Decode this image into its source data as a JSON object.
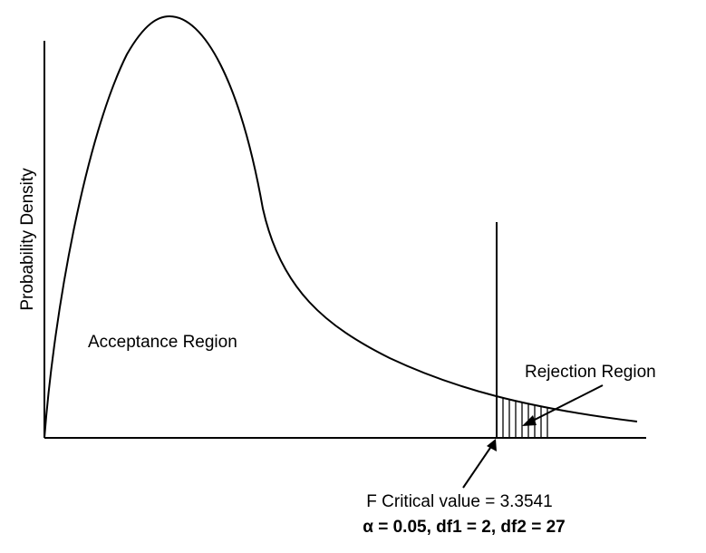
{
  "chart_data": {
    "type": "line",
    "title": "",
    "xlabel": "",
    "ylabel": "Probability Density",
    "grid": false,
    "distribution": "F",
    "df1": 2,
    "df2": 27,
    "alpha": 0.05,
    "critical_value": 3.3541,
    "region_labels": {
      "acceptance": "Acceptance Region",
      "rejection": "Rejection Region"
    },
    "annotations": {
      "critical_value_label": "F Critical value = 3.3541",
      "params_label": "α = 0.05, df1 = 2, df2 = 27"
    }
  }
}
